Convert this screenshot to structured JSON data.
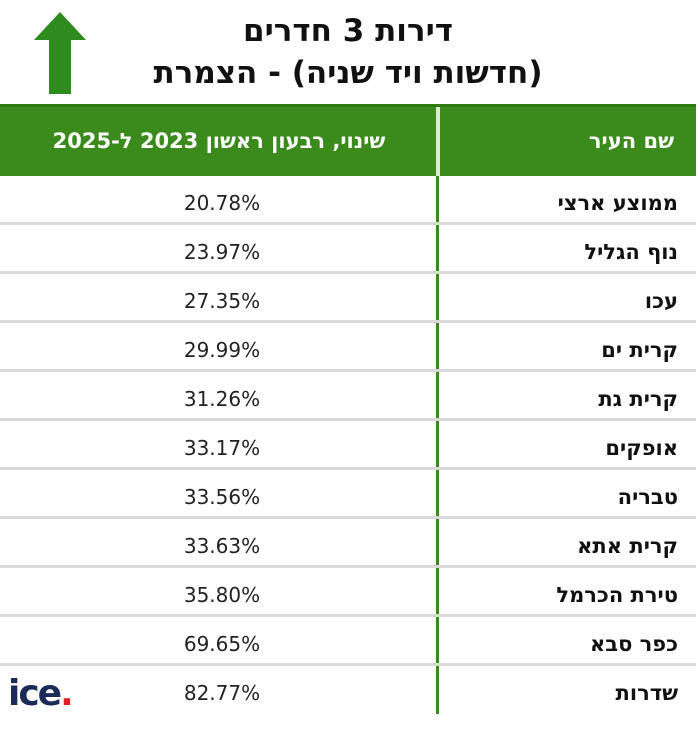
{
  "title": {
    "line1": "דירות 3 חדרים",
    "line2": "(חדשות ויד שניה) - הצמרת"
  },
  "icons": {
    "arrow": "up-arrow-icon",
    "arrow_color": "#2e8b1e"
  },
  "colors": {
    "header_bg": "#3a8a1c",
    "divider": "#3a8a1c"
  },
  "table": {
    "headers": {
      "city": "שם העיר",
      "change": "שינוי, רבעון ראשון  2023 ל-2025"
    },
    "rows": [
      {
        "city": "ממוצע ארצי",
        "value": "20.78%"
      },
      {
        "city": "נוף הגליל",
        "value": "23.97%"
      },
      {
        "city": "עכו",
        "value": "27.35%"
      },
      {
        "city": "קרית ים",
        "value": "29.99%"
      },
      {
        "city": "קרית גת",
        "value": "31.26%"
      },
      {
        "city": "אופקים",
        "value": "33.17%"
      },
      {
        "city": "טבריה",
        "value": "33.56%"
      },
      {
        "city": "קרית אתא",
        "value": "33.63%"
      },
      {
        "city": "טירת הכרמל",
        "value": "35.80%"
      },
      {
        "city": "כפר סבא",
        "value": "69.65%"
      },
      {
        "city": "שדרות",
        "value": "82.77%"
      }
    ]
  },
  "logo": {
    "letters": "ice",
    "dot": "."
  }
}
